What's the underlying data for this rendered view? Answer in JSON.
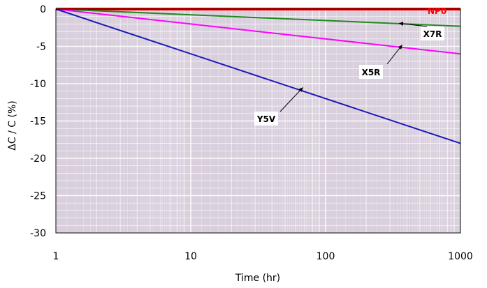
{
  "chart_data": {
    "type": "line",
    "xlabel": "Time (hr)",
    "ylabel": "ΔC / C (%)",
    "x_scale": "log",
    "xlim": [
      1,
      1000
    ],
    "ylim": [
      -30,
      0
    ],
    "x_ticks": [
      1,
      10,
      100,
      1000
    ],
    "x_tick_labels": [
      "1",
      "10",
      "100",
      "1000"
    ],
    "y_ticks": [
      0,
      -5,
      -10,
      -15,
      -20,
      -25,
      -30
    ],
    "y_tick_labels": [
      "0",
      "-5",
      "-10",
      "-15",
      "-20",
      "-25",
      "-30"
    ],
    "grid": true,
    "plot_background": "#d9cfdd",
    "grid_color": "#ffffff",
    "series": [
      {
        "name": "NP0",
        "color": "#ff0000",
        "x": [
          1,
          1000
        ],
        "y": [
          0,
          0
        ],
        "label_box": false,
        "arrow": false
      },
      {
        "name": "X7R",
        "color": "#1f8a1f",
        "x": [
          1,
          1000
        ],
        "y": [
          0,
          -2.3
        ],
        "label_box": true,
        "arrow": true,
        "pointer": [
          350,
          -1.9
        ]
      },
      {
        "name": "X5R",
        "color": "#ff00ff",
        "x": [
          1,
          1000
        ],
        "y": [
          0,
          -6
        ],
        "label_box": true,
        "arrow": true,
        "pointer": [
          370,
          -4.8
        ]
      },
      {
        "name": "Y5V",
        "color": "#1a1ab8",
        "x": [
          1,
          1000
        ],
        "y": [
          0,
          -18
        ],
        "label_box": true,
        "arrow": true,
        "pointer": [
          68,
          -10.5
        ]
      }
    ]
  }
}
